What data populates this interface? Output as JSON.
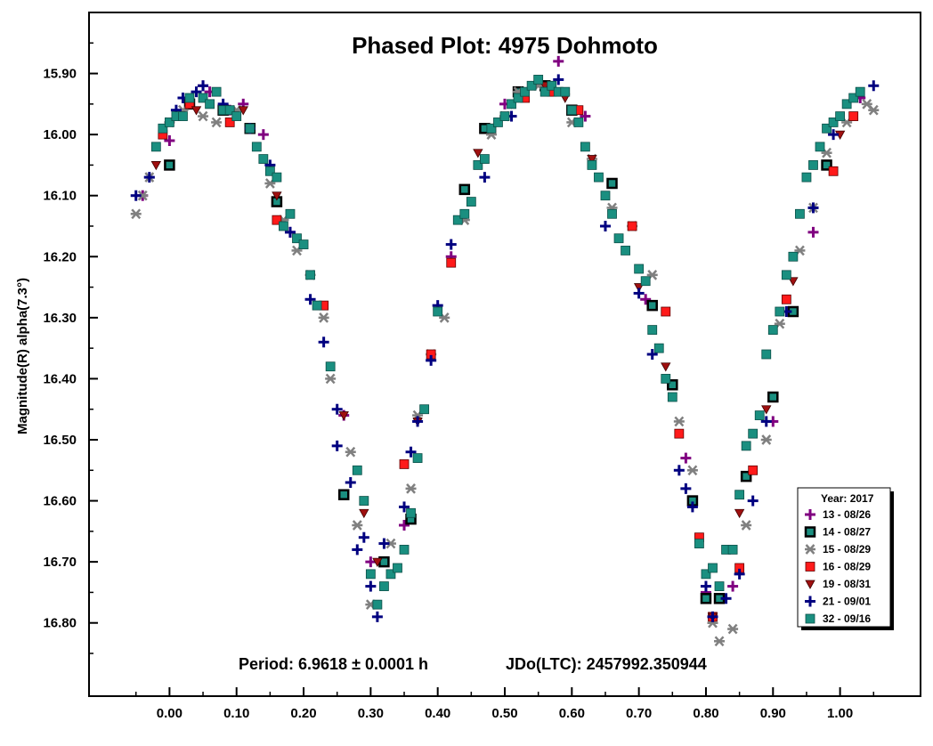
{
  "chart_data": {
    "type": "scatter",
    "title": "Phased Plot: 4975 Dohmoto",
    "xlabel": "",
    "ylabel": "Magnitude(R) alpha(7.3°)",
    "xlim": [
      -0.12,
      1.12
    ],
    "ylim": [
      16.92,
      15.8
    ],
    "y_inverted": true,
    "xticks": [
      0.0,
      0.1,
      0.2,
      0.3,
      0.4,
      0.5,
      0.6,
      0.7,
      0.8,
      0.9,
      1.0
    ],
    "xtick_labels": [
      "0.00",
      "0.10",
      "0.20",
      "0.30",
      "0.40",
      "0.50",
      "0.60",
      "0.70",
      "0.80",
      "0.90",
      "1.00"
    ],
    "yticks": [
      15.9,
      16.0,
      16.1,
      16.2,
      16.3,
      16.4,
      16.5,
      16.6,
      16.7,
      16.8
    ],
    "ytick_labels": [
      "15.90",
      "16.00",
      "16.10",
      "16.20",
      "16.30",
      "16.40",
      "16.50",
      "16.60",
      "16.70",
      "16.80"
    ],
    "grid": false,
    "legend_placement": "bottom-right",
    "legend_title": "Year: 2017",
    "annotations": [
      "Period: 6.9618 ± 0.0001 h",
      "JDo(LTC): 2457992.350944"
    ],
    "series": [
      {
        "name": "13 - 08/26",
        "marker": "plus",
        "color": "#800080",
        "x": [
          -0.04,
          0.0,
          0.05,
          0.06,
          0.09,
          0.11,
          0.14,
          0.18,
          0.26,
          0.3,
          0.35,
          0.42,
          0.5,
          0.56,
          0.58,
          0.62,
          0.71,
          0.77,
          0.8,
          0.84,
          0.9,
          0.96,
          1.03
        ],
        "y": [
          16.1,
          16.01,
          15.92,
          15.93,
          15.96,
          15.95,
          16.0,
          16.16,
          16.46,
          16.7,
          16.64,
          16.2,
          15.95,
          15.92,
          15.88,
          15.97,
          16.27,
          16.53,
          16.75,
          16.74,
          16.47,
          16.16,
          15.94
        ]
      },
      {
        "name": "14 - 08/27",
        "marker": "square-dark",
        "color": "#1a8f80",
        "x": [
          0.0,
          0.03,
          0.08,
          0.12,
          0.16,
          0.26,
          0.32,
          0.36,
          0.44,
          0.47,
          0.52,
          0.56,
          0.6,
          0.66,
          0.72,
          0.75,
          0.78,
          0.8,
          0.82,
          0.86,
          0.9,
          0.93,
          0.98
        ],
        "y": [
          16.05,
          15.95,
          15.96,
          15.99,
          16.11,
          16.59,
          16.7,
          16.63,
          16.09,
          15.99,
          15.93,
          15.92,
          15.96,
          16.08,
          16.28,
          16.41,
          16.6,
          16.76,
          16.76,
          16.56,
          16.43,
          16.29,
          16.05
        ]
      },
      {
        "name": "15 - 08/29",
        "marker": "asterisk",
        "color": "#808080",
        "x": [
          -0.05,
          -0.04,
          -0.03,
          0.0,
          0.02,
          0.05,
          0.07,
          0.1,
          0.15,
          0.17,
          0.19,
          0.21,
          0.23,
          0.24,
          0.27,
          0.28,
          0.3,
          0.33,
          0.36,
          0.37,
          0.39,
          0.41,
          0.44,
          0.48,
          0.5,
          0.52,
          0.55,
          0.6,
          0.63,
          0.66,
          0.69,
          0.72,
          0.76,
          0.78,
          0.81,
          0.82,
          0.84,
          0.86,
          0.89,
          0.91,
          0.94,
          0.96,
          0.98,
          1.01,
          1.04,
          1.05
        ],
        "y": [
          16.13,
          16.1,
          16.07,
          15.98,
          15.96,
          15.97,
          15.98,
          15.96,
          16.08,
          16.14,
          16.19,
          16.23,
          16.3,
          16.4,
          16.52,
          16.64,
          16.77,
          16.67,
          16.58,
          16.46,
          16.36,
          16.3,
          16.14,
          16.0,
          15.97,
          15.93,
          15.92,
          15.98,
          16.04,
          16.12,
          16.15,
          16.23,
          16.47,
          16.55,
          16.8,
          16.83,
          16.81,
          16.64,
          16.5,
          16.31,
          16.19,
          16.12,
          16.03,
          15.98,
          15.95,
          15.96
        ]
      },
      {
        "name": "16 - 08/29",
        "marker": "square-red",
        "color": "#ff1a1a",
        "x": [
          -0.01,
          0.03,
          0.09,
          0.16,
          0.23,
          0.35,
          0.39,
          0.42,
          0.48,
          0.53,
          0.57,
          0.61,
          0.69,
          0.74,
          0.76,
          0.79,
          0.81,
          0.85,
          0.87,
          0.92,
          0.99,
          1.02
        ],
        "y": [
          16.0,
          15.95,
          15.98,
          16.14,
          16.28,
          16.54,
          16.36,
          16.21,
          15.99,
          15.94,
          15.93,
          15.96,
          16.15,
          16.29,
          16.49,
          16.66,
          16.79,
          16.71,
          16.55,
          16.27,
          16.06,
          15.97
        ]
      },
      {
        "name": "19 - 08/31",
        "marker": "triangle-down",
        "color": "#a01010",
        "x": [
          -0.02,
          0.04,
          0.11,
          0.16,
          0.26,
          0.29,
          0.31,
          0.37,
          0.46,
          0.51,
          0.56,
          0.59,
          0.63,
          0.7,
          0.74,
          0.81,
          0.85,
          0.89,
          0.93,
          1.0
        ],
        "y": [
          16.05,
          15.96,
          15.96,
          16.1,
          16.46,
          16.62,
          16.7,
          16.47,
          16.03,
          15.95,
          15.92,
          15.94,
          16.04,
          16.25,
          16.38,
          16.79,
          16.62,
          16.45,
          16.24,
          16.0
        ]
      },
      {
        "name": "21 - 09/01",
        "marker": "plus",
        "color": "#000080",
        "x": [
          -0.05,
          -0.03,
          0.01,
          0.02,
          0.04,
          0.05,
          0.08,
          0.12,
          0.15,
          0.18,
          0.21,
          0.23,
          0.25,
          0.25,
          0.27,
          0.28,
          0.29,
          0.3,
          0.31,
          0.32,
          0.35,
          0.36,
          0.37,
          0.39,
          0.4,
          0.42,
          0.47,
          0.51,
          0.58,
          0.65,
          0.7,
          0.72,
          0.76,
          0.77,
          0.78,
          0.8,
          0.81,
          0.83,
          0.85,
          0.87,
          0.89,
          0.92,
          0.96,
          0.99,
          1.05
        ],
        "y": [
          16.1,
          16.07,
          15.96,
          15.94,
          15.93,
          15.92,
          15.95,
          15.99,
          16.05,
          16.16,
          16.27,
          16.34,
          16.51,
          16.45,
          16.57,
          16.68,
          16.66,
          16.74,
          16.79,
          16.67,
          16.61,
          16.52,
          16.47,
          16.37,
          16.28,
          16.18,
          16.07,
          15.97,
          15.91,
          16.15,
          16.26,
          16.36,
          16.55,
          16.58,
          16.61,
          16.74,
          16.79,
          16.76,
          16.72,
          16.6,
          16.47,
          16.29,
          16.12,
          16.0,
          15.92
        ]
      },
      {
        "name": "32 - 09/16",
        "marker": "square",
        "color": "#1a8f80",
        "x": [
          -0.02,
          -0.01,
          0.0,
          0.01,
          0.02,
          0.03,
          0.05,
          0.06,
          0.07,
          0.08,
          0.09,
          0.1,
          0.12,
          0.13,
          0.14,
          0.15,
          0.16,
          0.17,
          0.18,
          0.19,
          0.2,
          0.21,
          0.22,
          0.24,
          0.28,
          0.29,
          0.3,
          0.31,
          0.32,
          0.33,
          0.34,
          0.35,
          0.36,
          0.37,
          0.38,
          0.4,
          0.43,
          0.44,
          0.45,
          0.46,
          0.47,
          0.48,
          0.49,
          0.5,
          0.51,
          0.52,
          0.53,
          0.54,
          0.55,
          0.56,
          0.57,
          0.58,
          0.59,
          0.6,
          0.61,
          0.62,
          0.63,
          0.64,
          0.65,
          0.66,
          0.67,
          0.68,
          0.7,
          0.71,
          0.72,
          0.73,
          0.74,
          0.75,
          0.79,
          0.8,
          0.81,
          0.82,
          0.83,
          0.84,
          0.85,
          0.86,
          0.87,
          0.88,
          0.89,
          0.9,
          0.91,
          0.92,
          0.93,
          0.94,
          0.95,
          0.96,
          0.97,
          0.98,
          0.99,
          1.0,
          1.01,
          1.02,
          1.03
        ],
        "y": [
          16.02,
          15.99,
          15.98,
          15.97,
          15.97,
          15.94,
          15.94,
          15.95,
          15.93,
          15.96,
          15.96,
          15.97,
          15.99,
          16.02,
          16.04,
          16.06,
          16.07,
          16.15,
          16.13,
          16.17,
          16.18,
          16.23,
          16.28,
          16.38,
          16.55,
          16.6,
          16.72,
          16.77,
          16.74,
          16.72,
          16.71,
          16.68,
          16.62,
          16.53,
          16.45,
          16.29,
          16.14,
          16.13,
          16.11,
          16.05,
          16.04,
          15.99,
          15.98,
          15.97,
          15.95,
          15.94,
          15.93,
          15.92,
          15.91,
          15.93,
          15.92,
          15.93,
          15.93,
          15.96,
          15.98,
          16.02,
          16.05,
          16.07,
          16.1,
          16.13,
          16.17,
          16.19,
          16.22,
          16.24,
          16.32,
          16.35,
          16.4,
          16.43,
          16.67,
          16.72,
          16.71,
          16.74,
          16.68,
          16.68,
          16.59,
          16.51,
          16.49,
          16.46,
          16.36,
          16.32,
          16.29,
          16.23,
          16.2,
          16.13,
          16.07,
          16.05,
          16.02,
          15.99,
          15.98,
          15.97,
          15.95,
          15.94,
          15.93
        ]
      }
    ]
  }
}
